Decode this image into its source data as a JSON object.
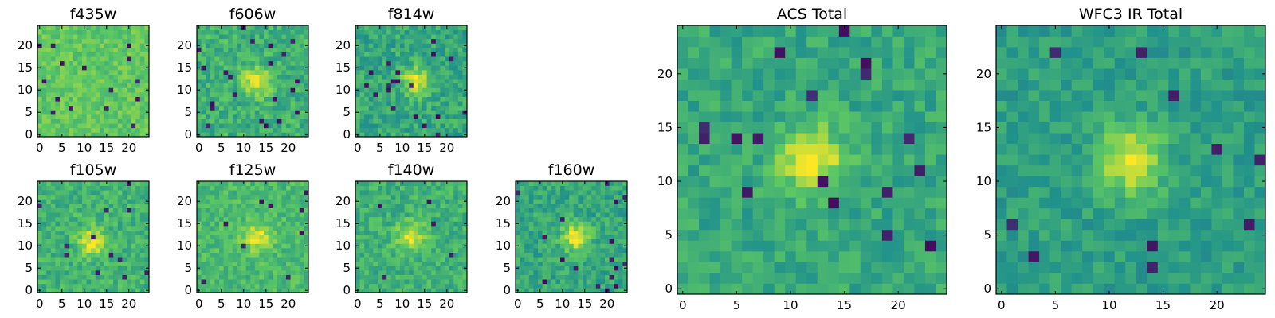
{
  "figure": {
    "background": "#ffffff"
  },
  "colormap": {
    "name": "viridis",
    "stops": [
      "#440154",
      "#3b528b",
      "#21918c",
      "#5ec962",
      "#fde725"
    ]
  },
  "chart_data": [
    {
      "id": "f435w",
      "type": "heatmap",
      "title": "f435w",
      "xticks": [
        0,
        5,
        10,
        15,
        20
      ],
      "yticks": [
        0,
        5,
        10,
        15,
        20
      ],
      "xlim": [
        -0.5,
        24.5
      ],
      "ylim": [
        -0.5,
        24.5
      ],
      "grid_size": 25,
      "source_peak": [
        null,
        null
      ],
      "peak_level": 0.0,
      "background_level": 0.74,
      "noise": 0.09,
      "dark_fraction": 0.028
    },
    {
      "id": "f606w",
      "type": "heatmap",
      "title": "f606w",
      "xticks": [
        0,
        5,
        10,
        15,
        20
      ],
      "yticks": [
        0,
        5,
        10,
        15,
        20
      ],
      "xlim": [
        -0.5,
        24.5
      ],
      "ylim": [
        -0.5,
        24.5
      ],
      "grid_size": 25,
      "source_peak": [
        13,
        12
      ],
      "peak_level": 0.97,
      "background_level": 0.64,
      "noise": 0.12,
      "dark_fraction": 0.03
    },
    {
      "id": "f814w",
      "type": "heatmap",
      "title": "f814w",
      "xticks": [
        0,
        5,
        10,
        15,
        20
      ],
      "yticks": [
        0,
        5,
        10,
        15,
        20
      ],
      "xlim": [
        -0.5,
        24.5
      ],
      "ylim": [
        -0.5,
        24.5
      ],
      "grid_size": 25,
      "source_peak": [
        13,
        12
      ],
      "peak_level": 0.97,
      "background_level": 0.6,
      "noise": 0.12,
      "dark_fraction": 0.03
    },
    {
      "id": "f105w",
      "type": "heatmap",
      "title": "f105w",
      "xticks": [
        0,
        5,
        10,
        15,
        20
      ],
      "yticks": [
        0,
        5,
        10,
        15,
        20
      ],
      "xlim": [
        -0.5,
        24.5
      ],
      "ylim": [
        -0.5,
        24.5
      ],
      "grid_size": 25,
      "source_peak": [
        12,
        11
      ],
      "peak_level": 0.98,
      "background_level": 0.65,
      "noise": 0.11,
      "dark_fraction": 0.015
    },
    {
      "id": "f125w",
      "type": "heatmap",
      "title": "f125w",
      "xticks": [
        0,
        5,
        10,
        15,
        20
      ],
      "yticks": [
        0,
        5,
        10,
        15,
        20
      ],
      "xlim": [
        -0.5,
        24.5
      ],
      "ylim": [
        -0.5,
        24.5
      ],
      "grid_size": 25,
      "source_peak": [
        13,
        12
      ],
      "peak_level": 0.95,
      "background_level": 0.68,
      "noise": 0.1,
      "dark_fraction": 0.015
    },
    {
      "id": "f140w",
      "type": "heatmap",
      "title": "f140w",
      "xticks": [
        0,
        5,
        10,
        15,
        20
      ],
      "yticks": [
        0,
        5,
        10,
        15,
        20
      ],
      "xlim": [
        -0.5,
        24.5
      ],
      "ylim": [
        -0.5,
        24.5
      ],
      "grid_size": 25,
      "source_peak": [
        12,
        12
      ],
      "peak_level": 0.96,
      "background_level": 0.64,
      "noise": 0.11,
      "dark_fraction": 0.015
    },
    {
      "id": "f160w",
      "type": "heatmap",
      "title": "f160w",
      "xticks": [
        0,
        5,
        10,
        15,
        20
      ],
      "yticks": [
        0,
        5,
        10,
        15,
        20
      ],
      "xlim": [
        -0.5,
        24.5
      ],
      "ylim": [
        -0.5,
        24.5
      ],
      "grid_size": 25,
      "source_peak": [
        13,
        12
      ],
      "peak_level": 0.98,
      "background_level": 0.6,
      "noise": 0.11,
      "dark_fraction": 0.015
    },
    {
      "id": "acs_total",
      "type": "heatmap",
      "title": "ACS Total",
      "xticks": [
        0,
        5,
        10,
        15,
        20
      ],
      "yticks": [
        0,
        5,
        10,
        15,
        20
      ],
      "xlim": [
        -0.5,
        24.5
      ],
      "ylim": [
        -0.5,
        24.5
      ],
      "grid_size": 25,
      "source_peak": [
        12,
        12
      ],
      "peak_level": 0.98,
      "background_level": 0.6,
      "noise": 0.1,
      "dark_fraction": 0.025
    },
    {
      "id": "wfc3_ir_total",
      "type": "heatmap",
      "title": "WFC3 IR Total",
      "xticks": [
        0,
        5,
        10,
        15,
        20
      ],
      "yticks": [
        0,
        5,
        10,
        15,
        20
      ],
      "xlim": [
        -0.5,
        24.5
      ],
      "ylim": [
        -0.5,
        24.5
      ],
      "grid_size": 25,
      "source_peak": [
        12,
        12
      ],
      "peak_level": 0.98,
      "background_level": 0.56,
      "noise": 0.09,
      "dark_fraction": 0.015
    }
  ]
}
